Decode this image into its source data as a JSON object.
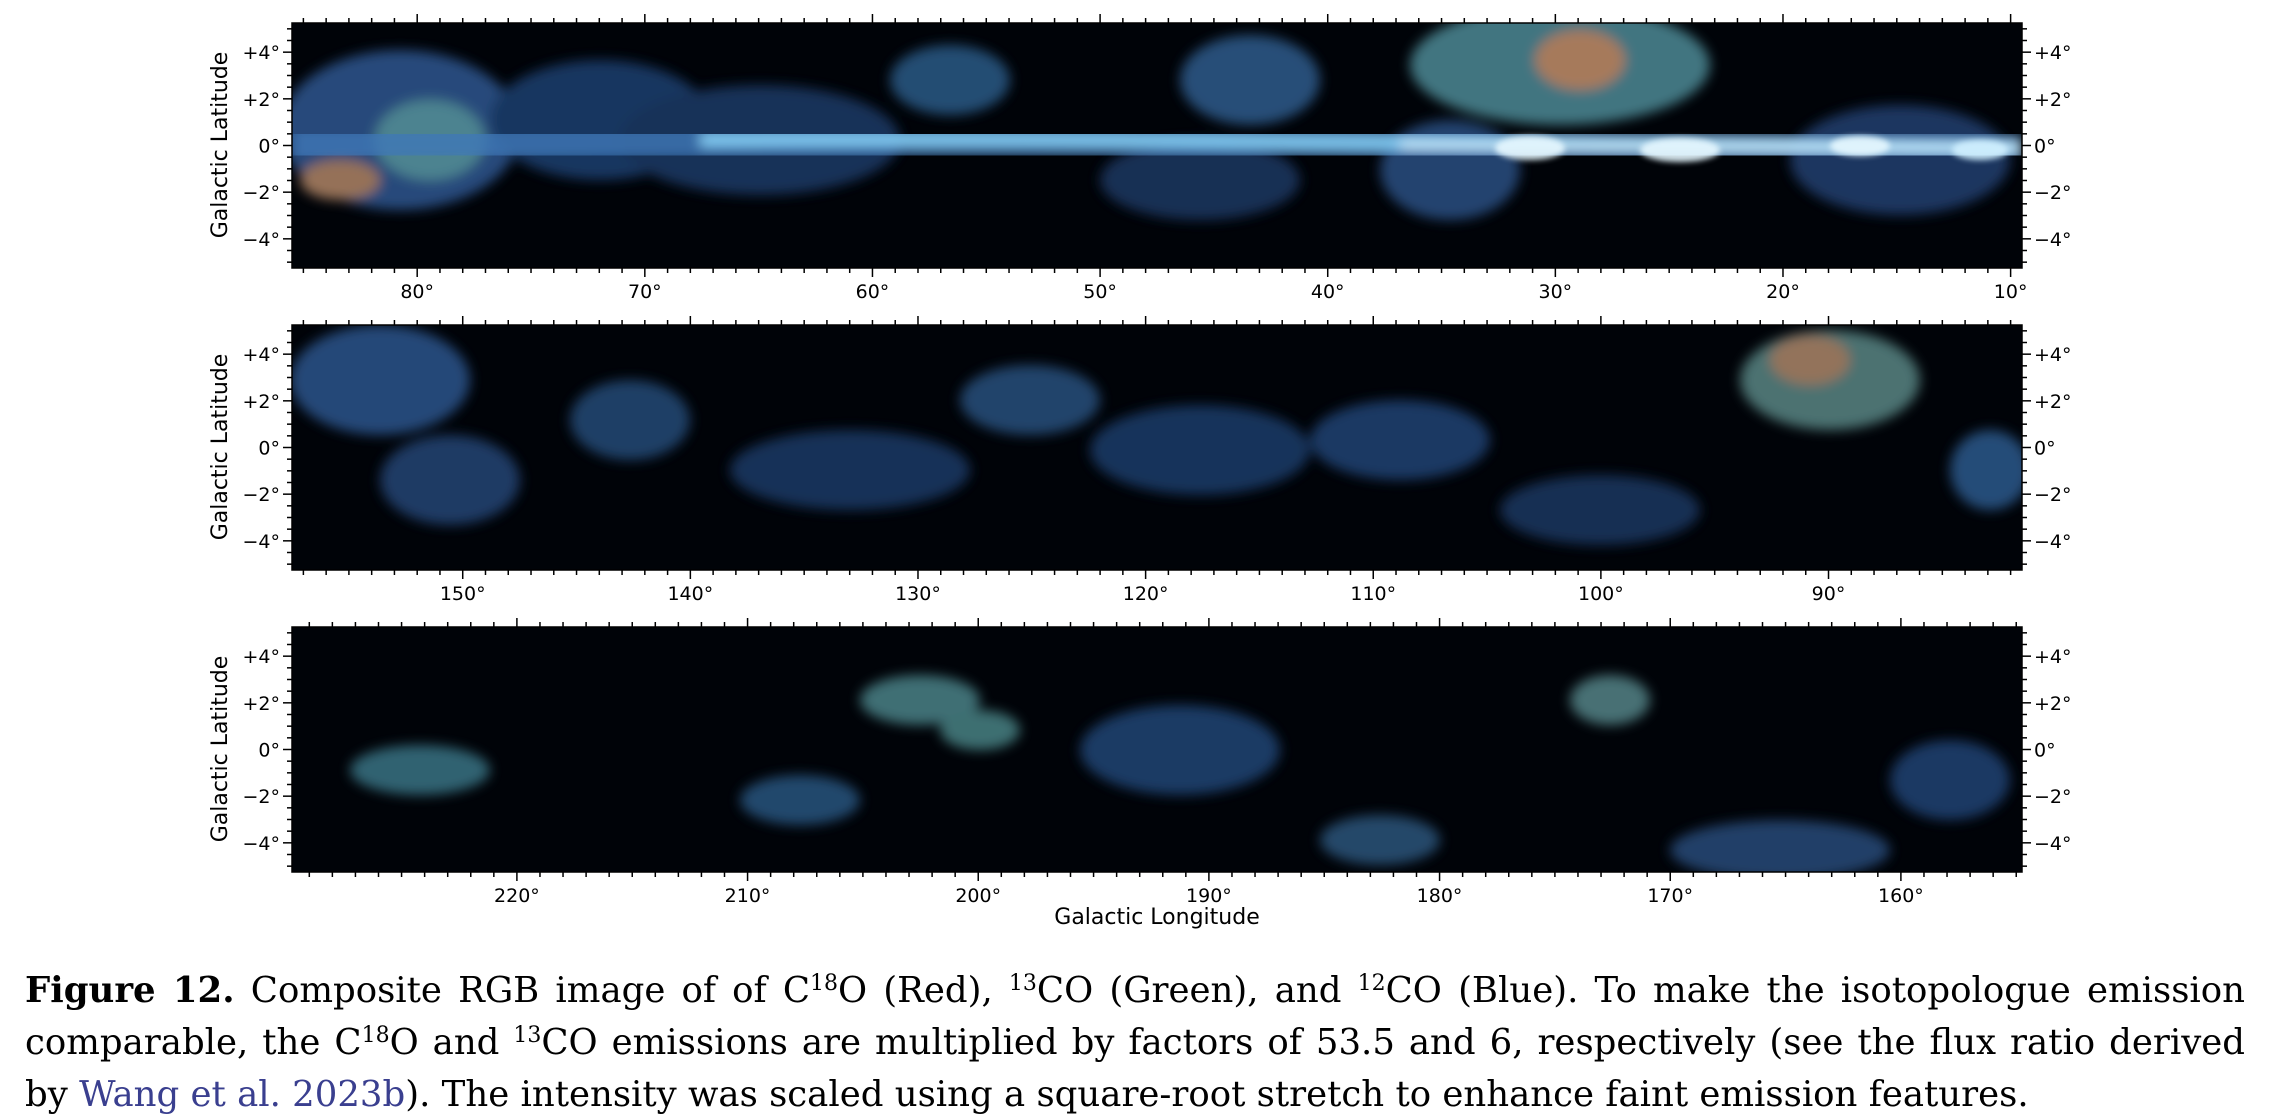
{
  "panels": [
    {
      "id": "top",
      "lon_max": 85.5,
      "lon_min": 9.5,
      "lon_labels": [
        80,
        70,
        60,
        50,
        40,
        30,
        20,
        10
      ],
      "lat_labels": [
        4,
        2,
        0,
        -2,
        -4
      ],
      "ylabel": "Galactic Latitude"
    },
    {
      "id": "middle",
      "lon_max": 157.5,
      "lon_min": 81.5,
      "lon_labels": [
        150,
        140,
        130,
        120,
        110,
        100,
        90
      ],
      "lat_labels": [
        4,
        2,
        0,
        -2,
        -4
      ],
      "ylabel": "Galactic Latitude"
    },
    {
      "id": "bottom",
      "lon_max": 229.75,
      "lon_min": 154.75,
      "lon_labels": [
        220,
        210,
        200,
        190,
        180,
        170,
        160
      ],
      "lat_labels": [
        4,
        2,
        0,
        -2,
        -4
      ],
      "ylabel": "Galactic Latitude"
    }
  ],
  "lat_range": [
    -5.25,
    5.25
  ],
  "xlabel": "Galactic Longitude",
  "degree_symbol": "°",
  "caption": {
    "label": "Figure 12.",
    "t1": " Composite RGB image of of C",
    "s1": "18",
    "t2": "O (Red), ",
    "s2": "13",
    "t3": "CO (Green), and ",
    "s3": "12",
    "t4": "CO (Blue). To make the isotopologue emission comparable, the C",
    "s4": "18",
    "t5": "O and ",
    "s5": "13",
    "t6": "CO emissions are multiplied by factors of 53.5 and 6, respectively (see the flux ratio derived by ",
    "link": "Wang et al. 2023b",
    "t7": "). The intensity was scaled using a square-root stretch to enhance faint emission features."
  },
  "colors": {
    "background": "#000308",
    "plane_blue": "#8fdcff",
    "cloud_blue": "#3f6fb8",
    "cloud_teal": "#6fb8a8",
    "cloud_orange": "#d09060",
    "link": "#3a3f8f"
  }
}
